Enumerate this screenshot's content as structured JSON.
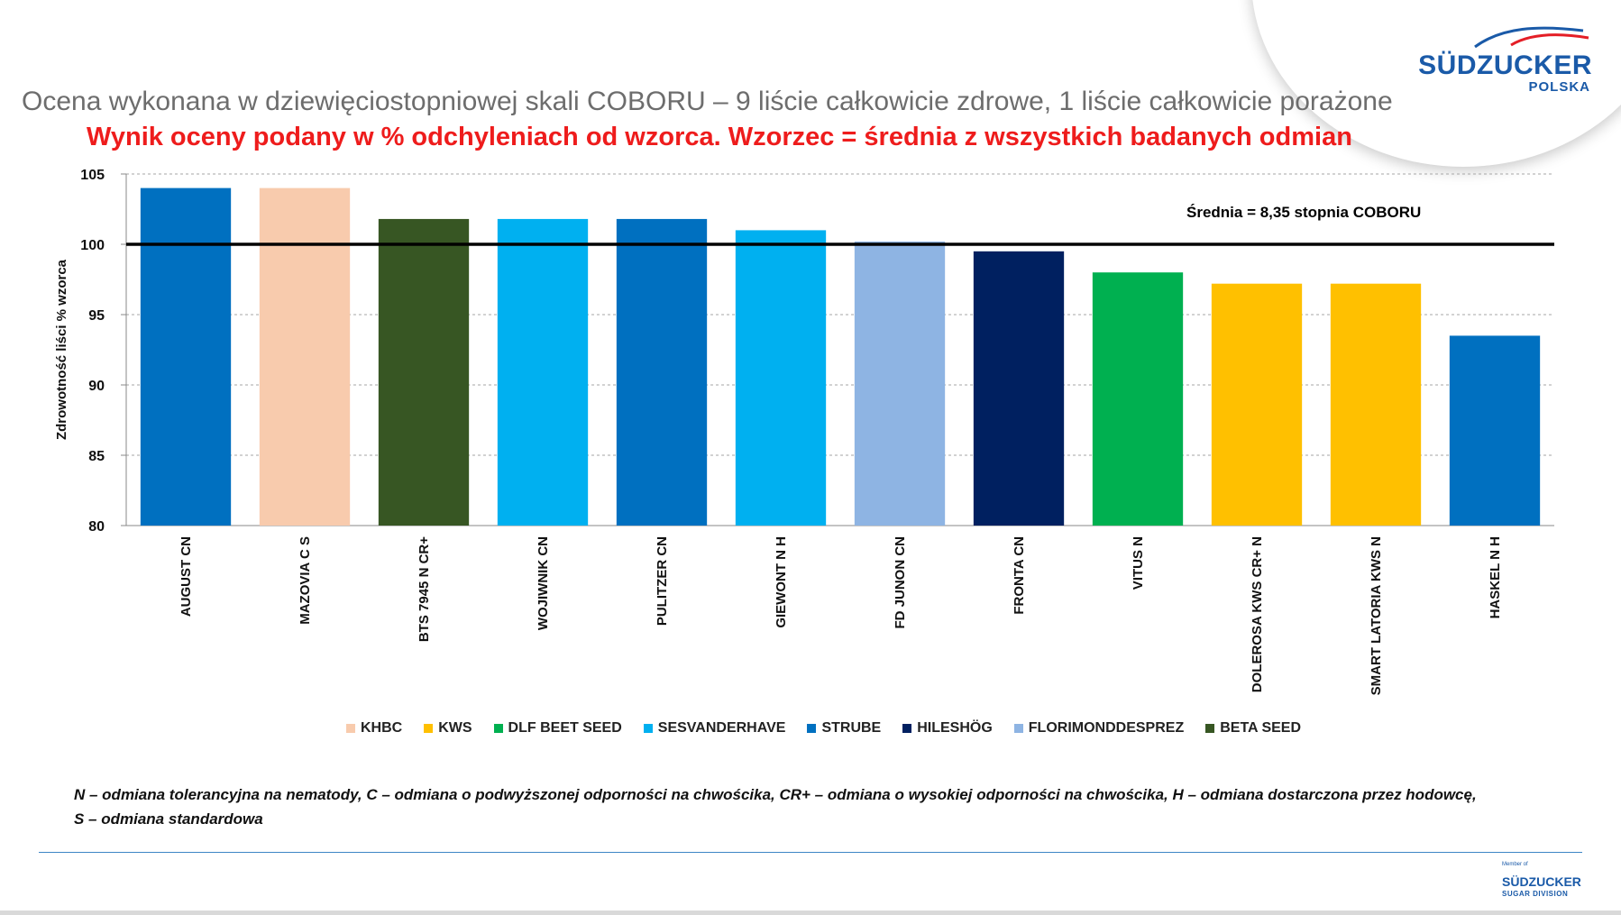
{
  "header": {
    "subtitle": "Ocena wykonana w dziewięciostopniowej skali COBORU – 9 liście całkowicie zdrowe, 1 liście całkowicie porażone",
    "title": "Wynik oceny podany w % odchyleniach od wzorca. Wzorzec = średnia z wszystkich badanych odmian"
  },
  "logo_top": {
    "name": "SÜDZUCKER",
    "sub": "POLSKA"
  },
  "logo_bottom": {
    "member": "Member of",
    "name": "SÜDZUCKER",
    "sub": "SUGAR DIVISION"
  },
  "chart_data": {
    "type": "bar",
    "ylabel": "Zdrowotność liści % wzorca",
    "xlabel": "",
    "ylim": [
      80,
      105
    ],
    "yticks": [
      80,
      85,
      90,
      95,
      100,
      105
    ],
    "grid": true,
    "reference_line": {
      "value": 100,
      "label": "Średnia = 8,35 stopnia COBORU"
    },
    "categories": [
      "AUGUST CN",
      "MAZOVIA C S",
      "BTS 7945 N CR+",
      "WOJIWNIK CN",
      "PULITZER CN",
      "GIEWONT N H",
      "FD JUNON CN",
      "FRONTA CN",
      "VITUS N",
      "DOLEROSA KWS CR+ N",
      "SMART LATORIA KWS N",
      "HASKEL N H"
    ],
    "values": [
      104,
      104,
      101.8,
      101.8,
      101.8,
      101,
      100.2,
      99.5,
      98,
      97.2,
      97.2,
      93.5
    ],
    "bar_groups": [
      "STRUBE",
      "KHBC",
      "BETA SEED",
      "SESVANDERHAVE",
      "STRUBE",
      "SESVANDERHAVE",
      "FLORIMONDDESPREZ",
      "HILESHÖG",
      "DLF BEET SEED",
      "KWS",
      "KWS",
      "STRUBE"
    ],
    "legend_position": "bottom",
    "legend": [
      {
        "name": "KHBC",
        "color": "#f8cbad"
      },
      {
        "name": "KWS",
        "color": "#ffc000"
      },
      {
        "name": "DLF BEET SEED",
        "color": "#00b050"
      },
      {
        "name": "SESVANDERHAVE",
        "color": "#00b0f0"
      },
      {
        "name": "STRUBE",
        "color": "#0070c0"
      },
      {
        "name": "HILESHÖG",
        "color": "#002060"
      },
      {
        "name": "FLORIMONDDESPREZ",
        "color": "#8eb4e3"
      },
      {
        "name": "BETA SEED",
        "color": "#375623"
      }
    ]
  },
  "footnote": {
    "line1": "N – odmiana tolerancyjna na nematody, C – odmiana o podwyższonej odporności na chwościka, CR+ – odmiana o wysokiej odporności na chwościka, H – odmiana dostarczona przez hodowcę,",
    "line2": "S – odmiana standardowa"
  }
}
